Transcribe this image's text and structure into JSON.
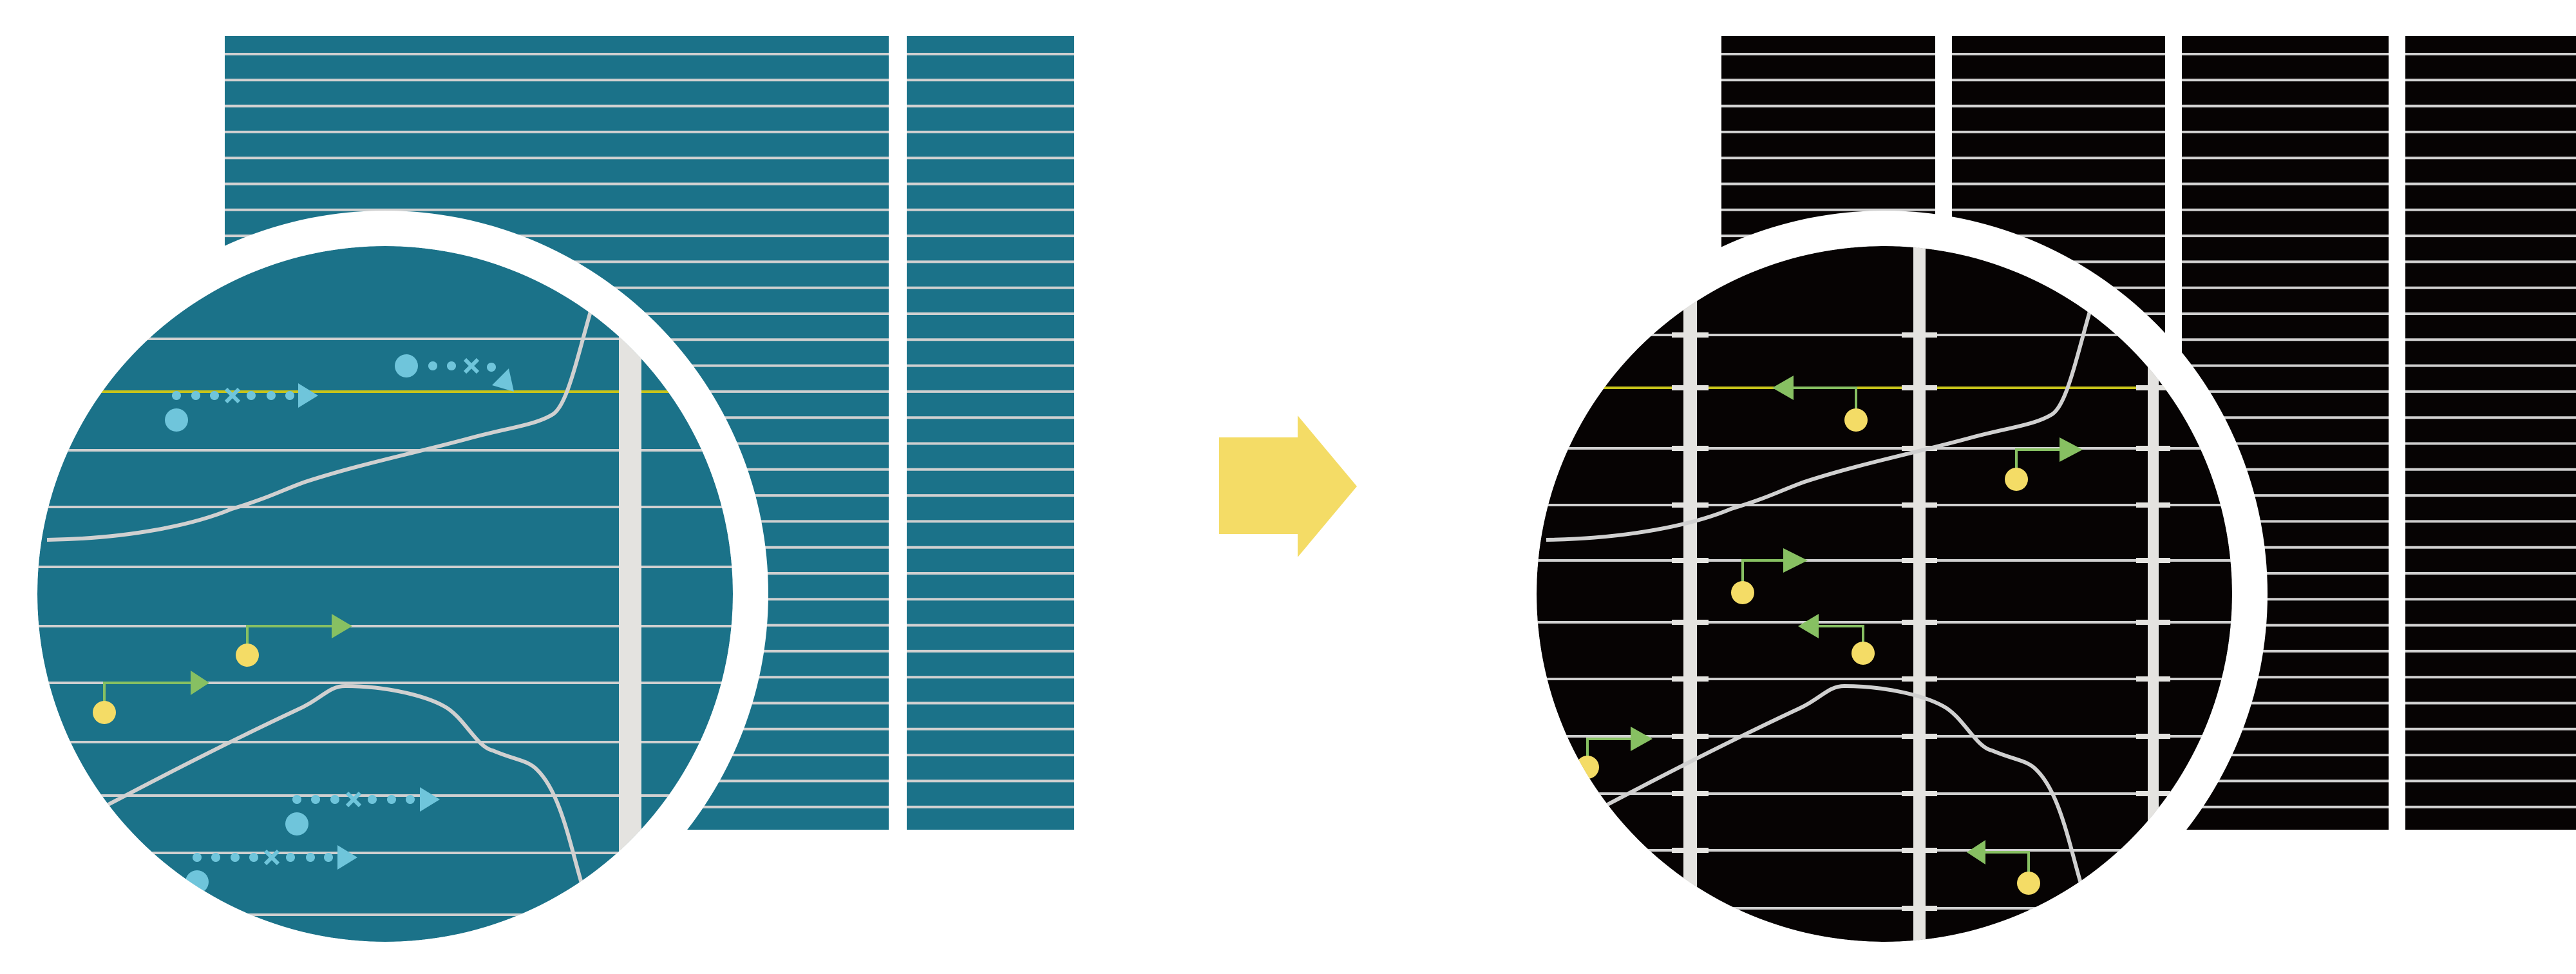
{
  "colors": {
    "background": "#ffffff",
    "before_panel": "#1b7289",
    "after_panel": "#060303",
    "grid_line": "#d0d0d0",
    "divider": "#e4e3e0",
    "highlight_line": "#c8c41a",
    "trajectory_marker": "#6fc5db",
    "agent": "#f4dc66",
    "agent_arrow": "#87c062",
    "transition_arrow": "#f4dc66",
    "ring": "#ffffff"
  },
  "icons": {
    "transition": "right-arrow-icon",
    "magnifier": "magnifier-circle-icon"
  }
}
